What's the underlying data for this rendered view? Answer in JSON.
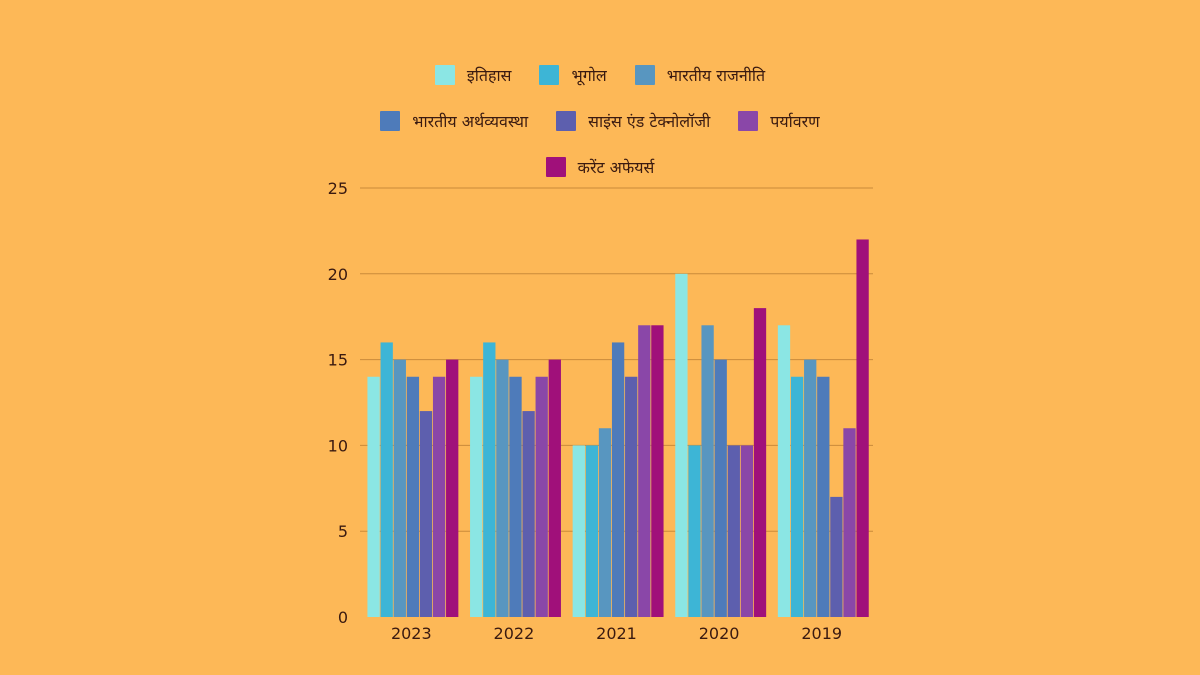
{
  "chart_data": {
    "type": "bar",
    "title": "",
    "xlabel": "",
    "ylabel": "",
    "categories": [
      "2023",
      "2022",
      "2021",
      "2020",
      "2019"
    ],
    "ylim": [
      0,
      25
    ],
    "yticks": [
      0,
      5,
      10,
      15,
      20,
      25
    ],
    "grid": true,
    "legend_position": "top-center",
    "series": [
      {
        "name": "इतिहास",
        "color": "#8BE6E4",
        "values": [
          14,
          14,
          10,
          20,
          17
        ]
      },
      {
        "name": "भूगोल",
        "color": "#3DB5D6",
        "values": [
          16,
          16,
          10,
          10,
          14
        ]
      },
      {
        "name": "भारतीय राजनीति",
        "color": "#5896C0",
        "values": [
          15,
          15,
          11,
          17,
          15
        ]
      },
      {
        "name": "भारतीय अर्थव्यवस्था",
        "color": "#4E7BBA",
        "values": [
          14,
          14,
          16,
          15,
          14
        ]
      },
      {
        "name": "साइंस एंड टेक्नोलॉजी",
        "color": "#5D5FAE",
        "values": [
          12,
          12,
          14,
          10,
          7
        ]
      },
      {
        "name": "पर्यावरण",
        "color": "#8A47A8",
        "values": [
          14,
          14,
          17,
          10,
          11
        ]
      },
      {
        "name": "करेंट अफेयर्स",
        "color": "#A0107A",
        "values": [
          15,
          15,
          17,
          18,
          22
        ]
      }
    ]
  },
  "legend_rows": [
    [
      0,
      1,
      2
    ],
    [
      3,
      4,
      5
    ],
    [
      6
    ]
  ]
}
